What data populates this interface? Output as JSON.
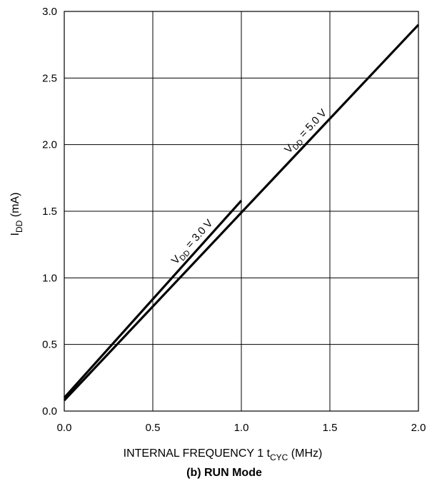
{
  "chart_data": {
    "type": "line",
    "caption": "(b) RUN Mode",
    "xlabel": {
      "main": "INTERNAL FREQUENCY 1 t",
      "sub": "CYC",
      "unit": " (MHz)"
    },
    "ylabel": {
      "main": "I",
      "sub": "DD",
      "unit": " (mA)"
    },
    "xlim": [
      0,
      2
    ],
    "ylim": [
      0,
      3
    ],
    "x_ticks": [
      "0.0",
      "0.5",
      "1.0",
      "1.5",
      "2.0"
    ],
    "y_ticks": [
      "0.0",
      "0.5",
      "1.0",
      "1.5",
      "2.0",
      "2.5",
      "3.0"
    ],
    "x_tick_values": [
      0,
      0.5,
      1,
      1.5,
      2
    ],
    "y_tick_values": [
      0,
      0.5,
      1,
      1.5,
      2,
      2.5,
      3
    ],
    "grid": true,
    "series": [
      {
        "label": {
          "main": "V",
          "sub": "DD",
          "rest": " = 5.0 V"
        },
        "x": [
          0,
          2
        ],
        "y": [
          0.08,
          2.9
        ],
        "label_at": 1.4
      },
      {
        "label": {
          "main": "V",
          "sub": "DD",
          "rest": " = 3.0 V"
        },
        "x": [
          0,
          1
        ],
        "y": [
          0.1,
          1.58
        ],
        "label_at": 0.76
      }
    ]
  }
}
